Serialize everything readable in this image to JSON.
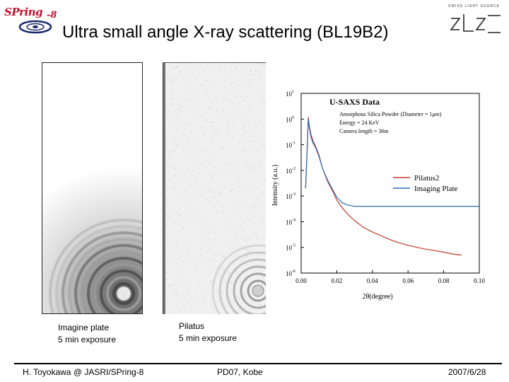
{
  "slide": {
    "title": "Ultra small angle X-ray scattering (BL19B2)"
  },
  "logos": {
    "left": {
      "wordmark": "SPring",
      "suffix": "-8"
    },
    "right": {
      "subtitle": "SWISS LIGHT SOURCE",
      "wordmark": "SLS"
    }
  },
  "images": {
    "imaging_plate": {
      "caption_line1": "Imagine plate",
      "caption_line2": "5 min exposure"
    },
    "pilatus": {
      "caption_line1": "Pilatus",
      "caption_line2": "5 min exposure"
    }
  },
  "footer": {
    "author": "H. Toyokawa @ JASRI/SPring-8",
    "venue": "PD07, Kobe",
    "date": "2007/6/28"
  },
  "colors": {
    "pilatus_series": "#c0392b",
    "imaging_plate_series": "#2c6fb5",
    "brand_red": "#c8102e",
    "brand_navy": "#1a2a6c"
  },
  "chart_data": {
    "type": "line",
    "title": "U-SAXS Data",
    "annotations": [
      "Amorphous Silica Powder (Diameter = 1μm)",
      "Energy = 24 KeV",
      "Camera length = 36m"
    ],
    "xlabel": "2θ(degree)",
    "ylabel": "Intensity (a.u.)",
    "xlim": [
      0.0,
      0.1
    ],
    "ylim_log10": [
      -6,
      1
    ],
    "y_scale": "log",
    "x_ticks": [
      "0.00",
      "0.02",
      "0.04",
      "0.06",
      "0.08",
      "0.10"
    ],
    "y_ticks": [
      {
        "base": "10",
        "exp": "1"
      },
      {
        "base": "10",
        "exp": "0"
      },
      {
        "base": "10",
        "exp": "-1"
      },
      {
        "base": "10",
        "exp": "-2"
      },
      {
        "base": "10",
        "exp": "-3"
      },
      {
        "base": "10",
        "exp": "-4"
      },
      {
        "base": "10",
        "exp": "-5"
      },
      {
        "base": "10",
        "exp": "-6"
      }
    ],
    "legend_position": "right-middle",
    "series": [
      {
        "name": "Pilatus2",
        "x": [
          0.0025,
          0.0035,
          0.004,
          0.0045,
          0.0055,
          0.0065,
          0.008,
          0.01,
          0.012,
          0.015,
          0.018,
          0.02,
          0.023,
          0.026,
          0.03,
          0.035,
          0.04,
          0.045,
          0.05,
          0.055,
          0.06,
          0.065,
          0.07,
          0.075,
          0.08,
          0.085,
          0.09
        ],
        "y": [
          0.002,
          0.1,
          1.2,
          0.6,
          0.25,
          0.15,
          0.09,
          0.04,
          0.012,
          0.0035,
          0.0014,
          0.0007,
          0.00035,
          0.0002,
          0.00011,
          6e-05,
          4e-05,
          2.8e-05,
          2e-05,
          1.5e-05,
          1.2e-05,
          1e-05,
          8.5e-06,
          7.5e-06,
          6.5e-06,
          5.5e-06,
          5e-06
        ]
      },
      {
        "name": "Imaging Plate",
        "x": [
          0.0025,
          0.0035,
          0.004,
          0.0045,
          0.0055,
          0.0065,
          0.008,
          0.01,
          0.012,
          0.015,
          0.018,
          0.02,
          0.023,
          0.026,
          0.03,
          0.04,
          0.05,
          0.06,
          0.07,
          0.08,
          0.09,
          0.1
        ],
        "y": [
          0.002,
          0.12,
          1.0,
          0.5,
          0.2,
          0.12,
          0.08,
          0.035,
          0.012,
          0.004,
          0.0016,
          0.0009,
          0.00055,
          0.00045,
          0.0004,
          0.0004,
          0.0004,
          0.0004,
          0.0004,
          0.0004,
          0.0004,
          0.0004
        ]
      }
    ]
  }
}
